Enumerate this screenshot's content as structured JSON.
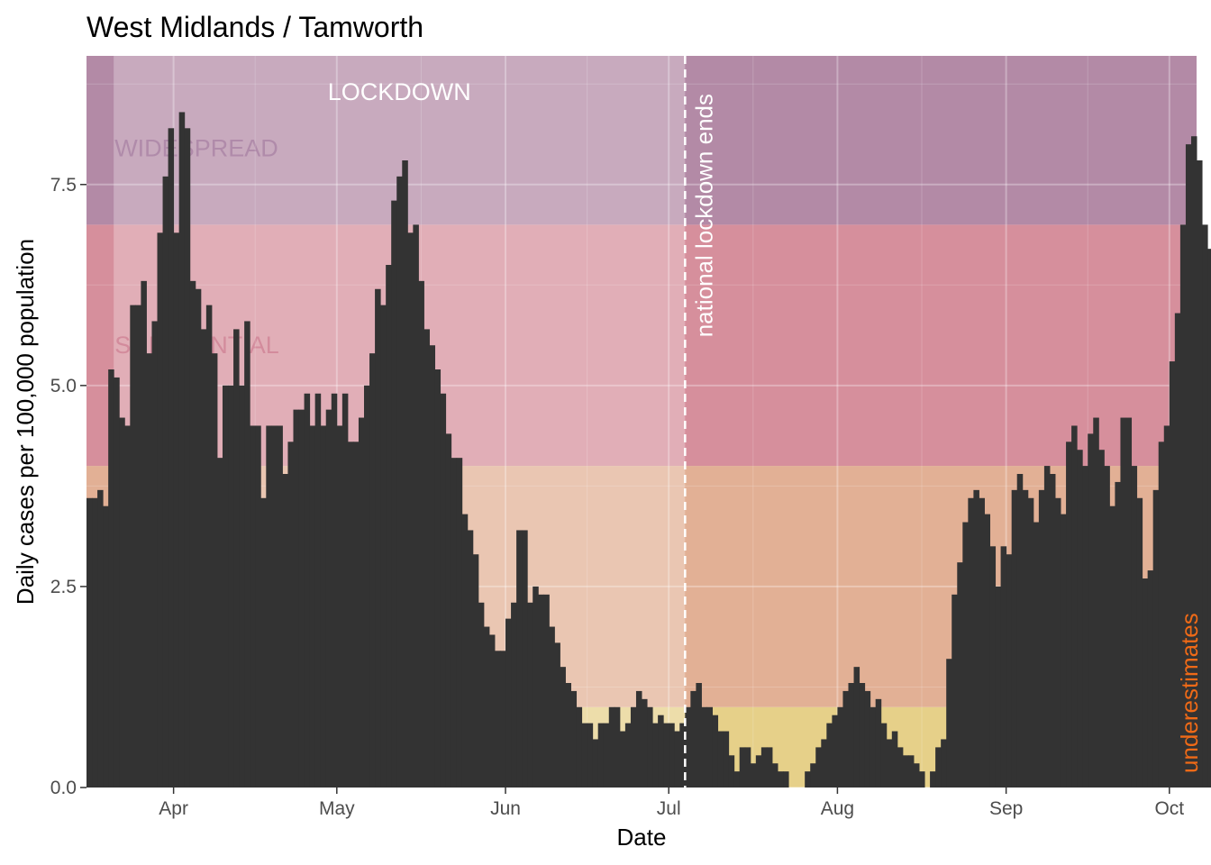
{
  "chart_data": {
    "type": "bar",
    "title": "West Midlands / Tamworth",
    "xlabel": "Date",
    "ylabel": "Daily cases per 100,000 population",
    "xlim": [
      "2020-03-16",
      "2020-10-06"
    ],
    "ylim": [
      0,
      9.1
    ],
    "grid": true,
    "x_ticks": [
      {
        "date": "2020-04-01",
        "label": "Apr"
      },
      {
        "date": "2020-05-01",
        "label": "May"
      },
      {
        "date": "2020-06-01",
        "label": "Jun"
      },
      {
        "date": "2020-07-01",
        "label": "Jul"
      },
      {
        "date": "2020-08-01",
        "label": "Aug"
      },
      {
        "date": "2020-09-01",
        "label": "Sep"
      },
      {
        "date": "2020-10-01",
        "label": "Oct"
      }
    ],
    "y_ticks": [
      {
        "value": 0,
        "label": "0.0"
      },
      {
        "value": 2.5,
        "label": "2.5"
      },
      {
        "value": 5,
        "label": "5.0"
      },
      {
        "value": 7.5,
        "label": "7.5"
      }
    ],
    "zones": [
      {
        "label": "",
        "ymin": 0,
        "ymax": 1,
        "color": "#e6d089"
      },
      {
        "label": "",
        "ymin": 1,
        "ymax": 4,
        "color": "#e2b095"
      },
      {
        "label": "SUBSTANTIAL",
        "ymin": 4,
        "ymax": 7,
        "color": "#d68f9c",
        "label_color": "#c05a72"
      },
      {
        "label": "WIDESPREAD",
        "ymin": 7,
        "ymax": 9.1,
        "color": "#b38aa6",
        "label_color": "#8e5a86"
      }
    ],
    "lockdown": {
      "label": "LOCKDOWN",
      "start": "2020-03-21",
      "end": "2020-07-04",
      "color": "#ffffff"
    },
    "vline": {
      "date": "2020-07-04",
      "label": "national lockdown ends",
      "color": "#ffffff"
    },
    "annotations": [
      {
        "text": "underestimates",
        "date": "2020-10-02",
        "color": "#ef6a17"
      }
    ],
    "bar_color": "#333333",
    "series": [
      {
        "start_date": "2020-03-16",
        "values": [
          3.6,
          3.6,
          3.7,
          3.5,
          5.2,
          5.1,
          4.6,
          4.5,
          6.0,
          6.0,
          6.3,
          5.4,
          5.8,
          6.9,
          7.6,
          8.2,
          6.9,
          8.4,
          8.2,
          6.3,
          6.2,
          5.7,
          6.0,
          5.4,
          4.1,
          5.0,
          5.0,
          5.7,
          5.0,
          5.8,
          4.5,
          4.5,
          3.6,
          4.5,
          4.5,
          4.5,
          3.9,
          4.3,
          4.7,
          4.7,
          4.9,
          4.5,
          4.9,
          4.5,
          4.7,
          4.9,
          4.5,
          4.9,
          4.3,
          4.3,
          4.6,
          5.0,
          5.4,
          6.2,
          6.0,
          6.5,
          7.3,
          7.6,
          7.8,
          6.9,
          7.0,
          6.3,
          5.7,
          5.5,
          5.2,
          4.9,
          4.4,
          4.1,
          4.1,
          3.4,
          3.2,
          2.9,
          2.3,
          2.0,
          1.9,
          1.7,
          1.7,
          2.1,
          2.3,
          3.2,
          3.2,
          2.3,
          2.5,
          2.4,
          2.4,
          2.0,
          1.8,
          1.5,
          1.3,
          1.2,
          1.0,
          0.8,
          0.8,
          0.6,
          0.8,
          0.8,
          1.0,
          1.0,
          0.7,
          0.8,
          1.0,
          1.2,
          1.1,
          1.0,
          0.8,
          0.9,
          0.8,
          0.8,
          0.7,
          0.8,
          1.0,
          1.2,
          1.3,
          1.0,
          1.0,
          0.9,
          0.7,
          0.7,
          0.4,
          0.2,
          0.5,
          0.5,
          0.3,
          0.4,
          0.5,
          0.5,
          0.3,
          0.2,
          0.2,
          0.0,
          0.0,
          0.0,
          0.2,
          0.3,
          0.5,
          0.6,
          0.8,
          0.9,
          1.0,
          1.2,
          1.3,
          1.5,
          1.3,
          1.2,
          1.0,
          1.1,
          0.8,
          0.6,
          0.7,
          0.5,
          0.4,
          0.4,
          0.3,
          0.2,
          0.0,
          0.2,
          0.5,
          0.6,
          1.6,
          2.4,
          2.8,
          3.3,
          3.6,
          3.7,
          3.6,
          3.4,
          3.0,
          2.5,
          3.0,
          2.9,
          3.7,
          3.9,
          3.7,
          3.6,
          3.3,
          3.7,
          4.0,
          3.9,
          3.6,
          3.4,
          4.3,
          4.5,
          4.2,
          4.0,
          4.4,
          4.6,
          4.2,
          4.0,
          3.5,
          3.8,
          4.6,
          4.6,
          4.0,
          3.6,
          2.6,
          2.7,
          3.7,
          4.3,
          4.5,
          5.3,
          5.9,
          7.0,
          8.0,
          8.1,
          7.8,
          7.0,
          6.7
        ]
      }
    ]
  }
}
